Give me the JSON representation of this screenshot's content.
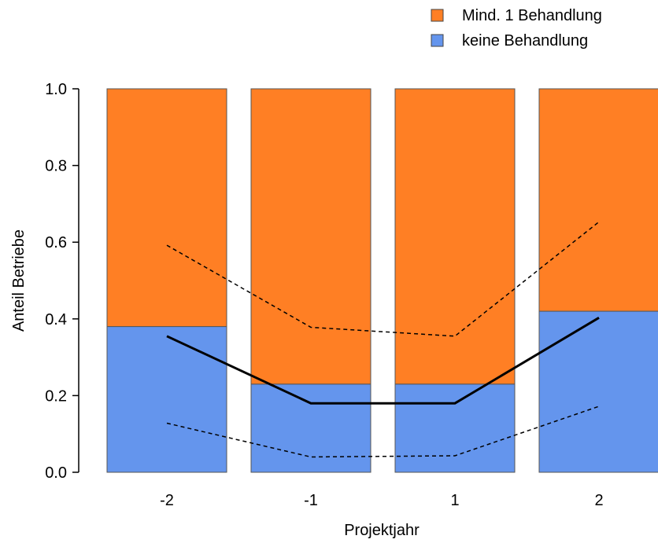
{
  "chart_data": {
    "type": "bar",
    "stacked": true,
    "xlabel": "Projektjahr",
    "ylabel": "Anteil Betriebe",
    "ylim": [
      0,
      1
    ],
    "yticks": [
      "0.0",
      "0.2",
      "0.4",
      "0.6",
      "0.8",
      "1.0"
    ],
    "ytick_values": [
      0,
      0.2,
      0.4,
      0.6,
      0.8,
      1.0
    ],
    "categories": [
      "-2",
      "-1",
      "1",
      "2"
    ],
    "series": [
      {
        "name": "keine Behandlung",
        "color": "#6495ED",
        "values": [
          0.38,
          0.23,
          0.23,
          0.42
        ]
      },
      {
        "name": "Mind. 1 Behandlung",
        "color": "#FF7F24",
        "values": [
          0.62,
          0.77,
          0.77,
          0.58
        ]
      }
    ],
    "lines": [
      {
        "style": "solid",
        "color": "#000000",
        "values": [
          0.355,
          0.18,
          0.18,
          0.403
        ]
      },
      {
        "style": "dashed",
        "color": "#000000",
        "values": [
          0.592,
          0.378,
          0.355,
          0.653
        ]
      },
      {
        "style": "dashed",
        "color": "#000000",
        "values": [
          0.128,
          0.04,
          0.043,
          0.172
        ]
      }
    ],
    "legend": {
      "position": "top-right",
      "items": [
        {
          "label": "Mind. 1 Behandlung",
          "color": "#FF7F24"
        },
        {
          "label": "keine Behandlung",
          "color": "#6495ED"
        }
      ]
    },
    "grid": false
  }
}
